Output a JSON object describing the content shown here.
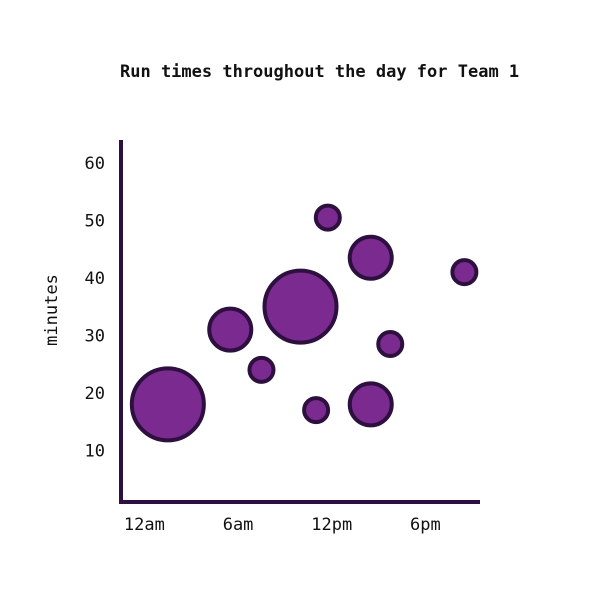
{
  "colors": {
    "bubble_fill": "#7b2a8f",
    "bubble_stroke": "#2d1040",
    "axis": "#2d1040",
    "text": "#111111"
  },
  "chart_data": {
    "type": "scatter",
    "title": "Run times throughout the day for Team 1",
    "xlabel": "",
    "ylabel": "minutes",
    "x_ticks": [
      "12am",
      "6am",
      "12pm",
      "6pm"
    ],
    "x_tick_hours": [
      0,
      6,
      12,
      18
    ],
    "y_ticks": [
      10,
      20,
      30,
      40,
      50,
      60
    ],
    "xlim": [
      -1.5,
      21.5
    ],
    "ylim": [
      1,
      64
    ],
    "grid": false,
    "size_encoding": "bubble radius",
    "points": [
      {
        "hour": 1.5,
        "minutes": 18,
        "size": 36
      },
      {
        "hour": 5.5,
        "minutes": 31,
        "size": 21
      },
      {
        "hour": 7.5,
        "minutes": 24,
        "size": 12
      },
      {
        "hour": 10.0,
        "minutes": 35,
        "size": 36
      },
      {
        "hour": 11.0,
        "minutes": 17,
        "size": 12
      },
      {
        "hour": 11.75,
        "minutes": 50.5,
        "size": 12
      },
      {
        "hour": 14.5,
        "minutes": 43.5,
        "size": 21
      },
      {
        "hour": 14.5,
        "minutes": 18,
        "size": 21
      },
      {
        "hour": 15.75,
        "minutes": 28.5,
        "size": 12
      },
      {
        "hour": 20.5,
        "minutes": 41,
        "size": 12
      }
    ]
  }
}
